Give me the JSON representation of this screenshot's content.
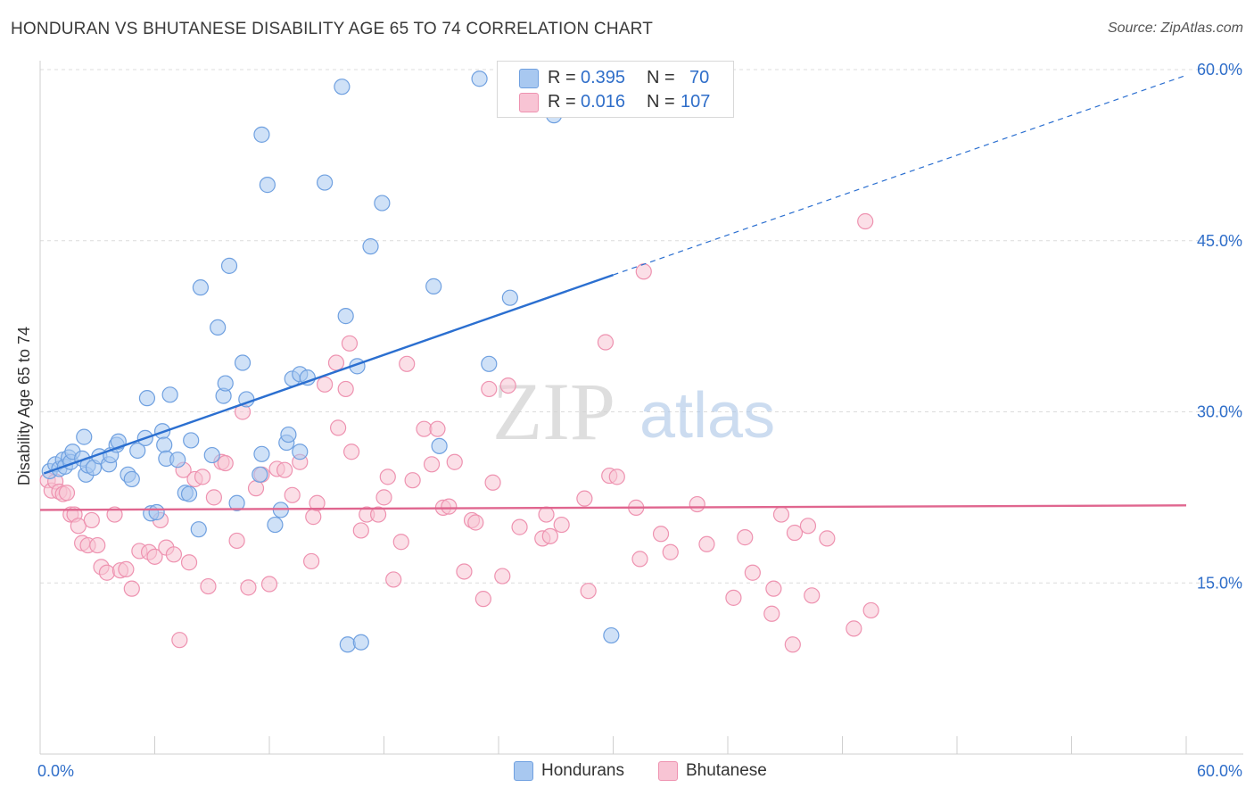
{
  "title": "HONDURAN VS BHUTANESE DISABILITY AGE 65 TO 74 CORRELATION CHART",
  "source": "Source: ZipAtlas.com",
  "watermark": {
    "zip": "ZIP",
    "atlas": "atlas"
  },
  "legend_top": [
    {
      "r_label": "R =",
      "r_value": "0.395",
      "n_label": "N =",
      "n_value": "70",
      "color": "#a8c8f0",
      "border": "#6fa0e0"
    },
    {
      "r_label": "R =",
      "r_value": "0.016",
      "n_label": "N =",
      "n_value": "107",
      "color": "#f8c4d4",
      "border": "#ee92b0"
    }
  ],
  "legend_bottom": [
    {
      "label": "Hondurans",
      "color": "#a8c8f0",
      "border": "#6fa0e0"
    },
    {
      "label": "Bhutanese",
      "color": "#f8c4d4",
      "border": "#ee92b0"
    }
  ],
  "chart_data": {
    "type": "scatter",
    "title": "HONDURAN VS BHUTANESE DISABILITY AGE 65 TO 74 CORRELATION CHART",
    "xlabel": "",
    "ylabel": "Disability Age 65 to 74",
    "xlim": [
      0,
      60
    ],
    "ylim": [
      0,
      60
    ],
    "x_tick_labels": [
      "0.0%",
      "60.0%"
    ],
    "y_ticks": [
      15,
      30,
      45,
      60
    ],
    "y_tick_labels": [
      "15.0%",
      "30.0%",
      "45.0%",
      "60.0%"
    ],
    "grid": true,
    "legend_position": "top-center",
    "series": [
      {
        "name": "Hondurans",
        "color": "#6fa0e0",
        "fill": "#a8c8f0",
        "line": {
          "x0": 0.2,
          "y0": 24.6,
          "x1": 30,
          "y1": 42.0,
          "dashed_to_x": 60,
          "dashed_to_y": 59.5,
          "color": "#2b6fd0"
        },
        "points": [
          [
            0.5,
            24.8
          ],
          [
            0.8,
            25.4
          ],
          [
            1.0,
            25.0
          ],
          [
            1.2,
            25.8
          ],
          [
            1.3,
            25.2
          ],
          [
            1.5,
            26.0
          ],
          [
            1.6,
            25.6
          ],
          [
            1.7,
            26.5
          ],
          [
            2.2,
            25.9
          ],
          [
            2.3,
            27.8
          ],
          [
            2.4,
            24.5
          ],
          [
            2.5,
            25.3
          ],
          [
            2.8,
            25.1
          ],
          [
            3.1,
            26.1
          ],
          [
            3.6,
            25.4
          ],
          [
            3.7,
            26.2
          ],
          [
            4.0,
            27.1
          ],
          [
            4.1,
            27.4
          ],
          [
            4.6,
            24.5
          ],
          [
            4.8,
            24.1
          ],
          [
            5.1,
            26.6
          ],
          [
            5.5,
            27.7
          ],
          [
            5.6,
            31.2
          ],
          [
            5.8,
            21.1
          ],
          [
            6.1,
            21.2
          ],
          [
            6.4,
            28.3
          ],
          [
            6.5,
            27.1
          ],
          [
            6.6,
            25.9
          ],
          [
            6.8,
            31.5
          ],
          [
            7.2,
            25.8
          ],
          [
            7.6,
            22.9
          ],
          [
            7.8,
            22.8
          ],
          [
            7.9,
            27.5
          ],
          [
            8.3,
            19.7
          ],
          [
            8.4,
            40.9
          ],
          [
            9.0,
            26.2
          ],
          [
            9.3,
            37.4
          ],
          [
            9.6,
            31.4
          ],
          [
            9.7,
            32.5
          ],
          [
            9.9,
            42.8
          ],
          [
            10.3,
            22.0
          ],
          [
            10.6,
            34.3
          ],
          [
            10.8,
            31.1
          ],
          [
            11.5,
            24.5
          ],
          [
            11.6,
            26.3
          ],
          [
            11.6,
            54.3
          ],
          [
            11.9,
            49.9
          ],
          [
            12.3,
            20.1
          ],
          [
            12.6,
            21.4
          ],
          [
            12.9,
            27.3
          ],
          [
            13.0,
            28.0
          ],
          [
            13.2,
            32.9
          ],
          [
            13.6,
            33.3
          ],
          [
            13.6,
            26.5
          ],
          [
            14.0,
            33.0
          ],
          [
            14.9,
            50.1
          ],
          [
            15.8,
            58.5
          ],
          [
            16.0,
            38.4
          ],
          [
            16.1,
            9.6
          ],
          [
            16.6,
            34.0
          ],
          [
            16.8,
            9.8
          ],
          [
            17.3,
            44.5
          ],
          [
            17.9,
            48.3
          ],
          [
            20.6,
            41.0
          ],
          [
            20.9,
            27.0
          ],
          [
            23.0,
            59.2
          ],
          [
            23.5,
            34.2
          ],
          [
            24.6,
            40.0
          ],
          [
            26.9,
            56.0
          ],
          [
            29.9,
            10.4
          ]
        ]
      },
      {
        "name": "Bhutanese",
        "color": "#ee92b0",
        "fill": "#f8c4d4",
        "line": {
          "x0": 0,
          "y0": 21.4,
          "x1": 60,
          "y1": 21.8,
          "color": "#e0668f"
        },
        "points": [
          [
            0.4,
            24.0
          ],
          [
            0.6,
            23.1
          ],
          [
            0.8,
            23.9
          ],
          [
            1.0,
            23.0
          ],
          [
            1.2,
            22.8
          ],
          [
            1.4,
            22.9
          ],
          [
            1.6,
            21.0
          ],
          [
            1.8,
            21.0
          ],
          [
            2.0,
            20.0
          ],
          [
            2.2,
            18.5
          ],
          [
            2.5,
            18.3
          ],
          [
            2.7,
            20.5
          ],
          [
            3.0,
            18.3
          ],
          [
            3.2,
            16.4
          ],
          [
            3.5,
            15.9
          ],
          [
            3.9,
            21.0
          ],
          [
            4.2,
            16.1
          ],
          [
            4.5,
            16.2
          ],
          [
            4.8,
            14.5
          ],
          [
            5.2,
            17.8
          ],
          [
            5.7,
            17.7
          ],
          [
            6.0,
            17.3
          ],
          [
            6.3,
            20.5
          ],
          [
            6.6,
            18.1
          ],
          [
            7.0,
            17.5
          ],
          [
            7.3,
            10.0
          ],
          [
            7.5,
            24.9
          ],
          [
            7.8,
            16.8
          ],
          [
            8.1,
            24.1
          ],
          [
            8.5,
            24.3
          ],
          [
            8.8,
            14.7
          ],
          [
            9.1,
            22.5
          ],
          [
            9.5,
            25.6
          ],
          [
            9.7,
            25.5
          ],
          [
            10.3,
            18.7
          ],
          [
            10.6,
            30.0
          ],
          [
            10.9,
            14.6
          ],
          [
            11.3,
            23.3
          ],
          [
            11.6,
            24.5
          ],
          [
            12.0,
            14.9
          ],
          [
            12.4,
            25.0
          ],
          [
            12.8,
            24.9
          ],
          [
            13.2,
            22.7
          ],
          [
            13.6,
            25.6
          ],
          [
            14.2,
            16.9
          ],
          [
            14.3,
            20.8
          ],
          [
            14.5,
            22.0
          ],
          [
            14.9,
            32.4
          ],
          [
            15.5,
            34.3
          ],
          [
            15.6,
            28.6
          ],
          [
            16.0,
            32.0
          ],
          [
            16.2,
            36.0
          ],
          [
            16.3,
            26.5
          ],
          [
            16.8,
            19.6
          ],
          [
            17.1,
            21.0
          ],
          [
            17.7,
            21.0
          ],
          [
            18.0,
            22.5
          ],
          [
            18.2,
            24.3
          ],
          [
            18.5,
            15.3
          ],
          [
            18.9,
            18.6
          ],
          [
            19.2,
            34.2
          ],
          [
            19.5,
            24.0
          ],
          [
            20.1,
            28.5
          ],
          [
            20.5,
            25.4
          ],
          [
            20.8,
            28.5
          ],
          [
            21.1,
            21.6
          ],
          [
            21.4,
            21.7
          ],
          [
            21.7,
            25.6
          ],
          [
            22.2,
            16.0
          ],
          [
            22.6,
            20.5
          ],
          [
            22.8,
            20.3
          ],
          [
            23.2,
            13.6
          ],
          [
            23.5,
            32.0
          ],
          [
            23.7,
            23.8
          ],
          [
            24.2,
            15.6
          ],
          [
            24.5,
            32.3
          ],
          [
            25.1,
            19.9
          ],
          [
            26.3,
            18.9
          ],
          [
            26.5,
            21.0
          ],
          [
            26.7,
            19.1
          ],
          [
            27.3,
            20.1
          ],
          [
            28.5,
            22.4
          ],
          [
            28.7,
            14.3
          ],
          [
            29.6,
            36.1
          ],
          [
            29.8,
            24.4
          ],
          [
            30.2,
            24.3
          ],
          [
            31.2,
            21.6
          ],
          [
            31.4,
            17.1
          ],
          [
            32.5,
            19.3
          ],
          [
            33.0,
            17.7
          ],
          [
            34.4,
            21.9
          ],
          [
            36.3,
            13.7
          ],
          [
            36.9,
            19.0
          ],
          [
            37.3,
            15.9
          ],
          [
            38.4,
            14.5
          ],
          [
            38.8,
            21.0
          ],
          [
            39.5,
            19.4
          ],
          [
            40.2,
            20.0
          ],
          [
            40.4,
            13.9
          ],
          [
            41.2,
            18.9
          ],
          [
            42.6,
            11.0
          ],
          [
            43.5,
            12.6
          ],
          [
            43.2,
            46.7
          ],
          [
            34.9,
            18.4
          ],
          [
            31.6,
            42.3
          ],
          [
            39.4,
            9.6
          ],
          [
            38.3,
            12.3
          ]
        ]
      }
    ]
  }
}
